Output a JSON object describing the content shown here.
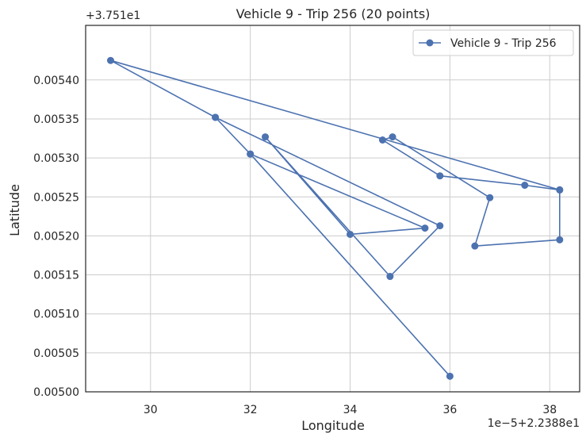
{
  "chart_data": {
    "type": "line",
    "title": "Vehicle 9 - Trip 256 (20 points)",
    "xlabel": "Longitude",
    "ylabel": "Latitude",
    "x_offset_label": "1e−5+2.2388e1",
    "y_offset_label": "+3.751e1",
    "xlim": [
      28.7,
      38.6
    ],
    "ylim": [
      0.005,
      0.00547
    ],
    "x_ticks": [
      "30",
      "32",
      "34",
      "36",
      "38"
    ],
    "y_ticks": [
      "0.00500",
      "0.00505",
      "0.00510",
      "0.00515",
      "0.00520",
      "0.00525",
      "0.00530",
      "0.00535",
      "0.00540"
    ],
    "grid": true,
    "legend_position": "top-right",
    "color": "#4c72b0",
    "series": [
      {
        "name": "Vehicle 9 - Trip 256",
        "x": [
          36.0,
          32.0,
          31.3,
          35.8,
          34.8,
          32.3,
          34.0,
          35.5,
          32.0,
          31.3,
          29.2,
          38.2,
          37.5,
          35.8,
          34.65,
          34.85,
          36.8,
          36.5,
          38.2,
          38.2
        ],
        "y": [
          0.00502,
          0.005305,
          0.005352,
          0.005213,
          0.005148,
          0.005327,
          0.005202,
          0.00521,
          0.005305,
          0.005352,
          0.005425,
          0.005259,
          0.005265,
          0.005277,
          0.005323,
          0.005327,
          0.005249,
          0.005187,
          0.005195,
          0.005259
        ]
      }
    ]
  }
}
